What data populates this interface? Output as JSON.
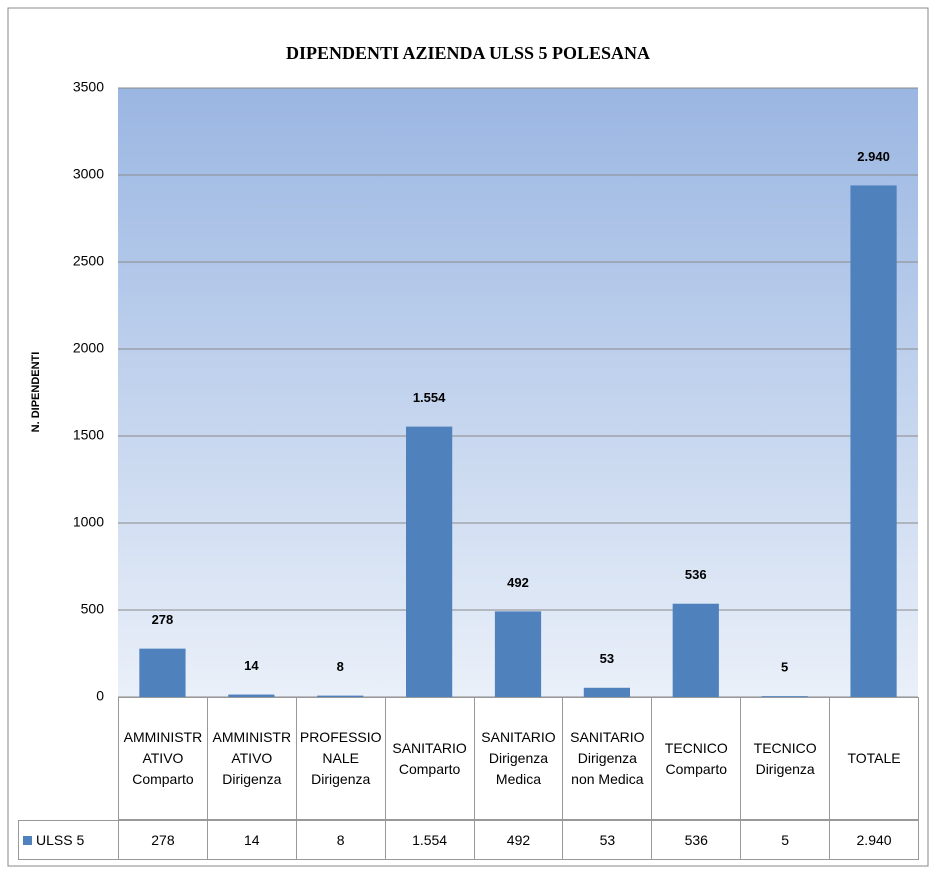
{
  "chart_data": {
    "type": "bar",
    "title": "DIPENDENTI AZIENDA ULSS 5 POLESANA",
    "y_label": "N. DIPENDENTI",
    "categories": [
      "AMMINISTRATIVO Comparto",
      "AMMINISTRATIVO Dirigenza",
      "PROFESSIONALE Dirigenza",
      "SANITARIO Comparto",
      "SANITARIO Dirigenza Medica",
      "SANITARIO Dirigenza non Medica",
      "TECNICO Comparto",
      "TECNICO Dirigenza",
      "TOTALE"
    ],
    "series": [
      {
        "name": "ULSS 5",
        "color": "#4f81bd",
        "values": [
          278,
          14,
          8,
          1554,
          492,
          53,
          536,
          5,
          2940
        ],
        "value_labels": [
          "278",
          "14",
          "8",
          "1.554",
          "492",
          "53",
          "536",
          "5",
          "2.940"
        ]
      }
    ],
    "ylim": [
      0,
      3500
    ],
    "yticks": [
      0,
      500,
      1000,
      1500,
      2000,
      2500,
      3000,
      3500
    ],
    "grid": true
  }
}
